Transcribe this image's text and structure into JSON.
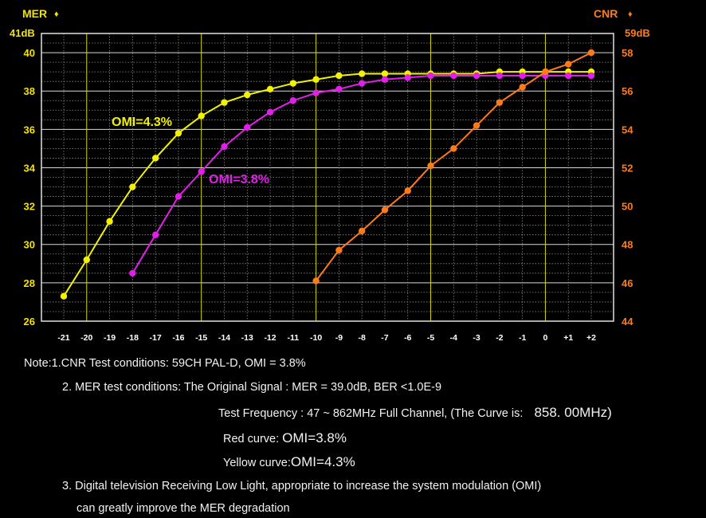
{
  "chart_data": {
    "type": "line",
    "left_axis": {
      "title": "MER",
      "top_label": "41dB",
      "range": [
        26,
        41
      ],
      "ticks": [
        26,
        28,
        30,
        32,
        34,
        36,
        38,
        40
      ],
      "color": "#f2e200"
    },
    "right_axis": {
      "title": "CNR",
      "top_label": "59dB",
      "range": [
        44,
        59
      ],
      "ticks": [
        44,
        46,
        48,
        50,
        52,
        54,
        56,
        58
      ],
      "color": "#ff7a18"
    },
    "x_ticks": [
      "-21",
      "-20",
      "-19",
      "-18",
      "-17",
      "-16",
      "-15",
      "-14",
      "-13",
      "-12",
      "-11",
      "-10",
      "-9",
      "-8",
      "-7",
      "-6",
      "-5",
      "-4",
      "-3",
      "-2",
      "-1",
      "0",
      "+1",
      "+2"
    ],
    "x_range": [
      -21,
      2
    ],
    "grid": true,
    "series": [
      {
        "name": "OMI=4.3%",
        "axis": "left",
        "color": "#f2f200",
        "x": [
          -21,
          -20,
          -19,
          -18,
          -17,
          -16,
          -15,
          -14,
          -13,
          -12,
          -11,
          -10,
          -9,
          -8,
          -7,
          -6,
          -5,
          -4,
          -3,
          -2,
          -1,
          0,
          1,
          2
        ],
        "y": [
          27.3,
          29.2,
          31.2,
          33.0,
          34.5,
          35.8,
          36.7,
          37.4,
          37.8,
          38.1,
          38.4,
          38.6,
          38.8,
          38.9,
          38.9,
          38.9,
          38.9,
          38.9,
          38.9,
          39.0,
          39.0,
          39.0,
          39.0,
          39.0
        ]
      },
      {
        "name": "OMI=3.8%",
        "axis": "left",
        "color": "#e020e8",
        "x": [
          -18,
          -17,
          -16,
          -15,
          -14,
          -13,
          -12,
          -11,
          -10,
          -9,
          -8,
          -7,
          -6,
          -5,
          -4,
          -3,
          -2,
          -1,
          0,
          1,
          2
        ],
        "y": [
          28.5,
          30.5,
          32.5,
          33.8,
          35.1,
          36.1,
          36.9,
          37.5,
          37.9,
          38.1,
          38.4,
          38.6,
          38.7,
          38.8,
          38.8,
          38.8,
          38.8,
          38.8,
          38.8,
          38.8,
          38.8
        ]
      },
      {
        "name": "CNR",
        "axis": "right",
        "color": "#ff7a18",
        "x": [
          -10,
          -9,
          -8,
          -7,
          -6,
          -5,
          -4,
          -3,
          -2,
          -1,
          0,
          1,
          2
        ],
        "y": [
          46.1,
          47.7,
          48.7,
          49.8,
          50.8,
          52.1,
          53.0,
          54.2,
          55.4,
          56.2,
          57.0,
          57.4,
          58.0
        ]
      }
    ],
    "annotations": [
      {
        "text": "OMI=4.3%",
        "color": "#f2f200"
      },
      {
        "text": "OMI=3.8%",
        "color": "#e020e8"
      }
    ]
  },
  "notes": {
    "line1": "Note:1.CNR Test conditions: 59CH PAL-D, OMI = 3.8%",
    "line2": "2. MER test conditions: The Original Signal :  MER = 39.0dB, BER <1.0E-9",
    "line3a": "Test Frequency : 47 ~ 862MHz Full Channel, (The Curve is:",
    "line3b": "858. 00MHz)",
    "line4a": "Red curve: ",
    "line4b": "OMI=3.8%",
    "line5a": "Yellow curve:",
    "line5b": "OMI=4.3%",
    "line6": "3. Digital television Receiving Low Light, appropriate to increase the system modulation (OMI)",
    "line7": "can greatly improve the MER degradation"
  }
}
